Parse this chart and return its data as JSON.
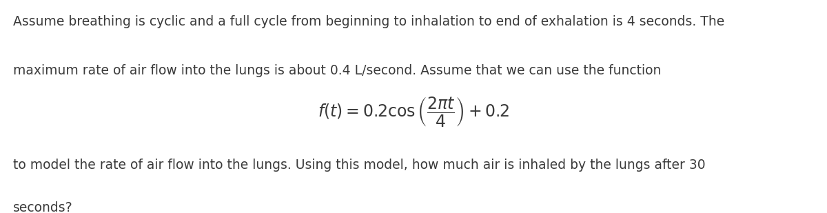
{
  "background_color": "#ffffff",
  "text_color": "#3a3a3a",
  "line1": "Assume breathing is cyclic and a full cycle from beginning to inhalation to end of exhalation is 4 seconds. The",
  "line2": "maximum rate of air flow into the lungs is about 0.4 L/second. Assume that we can use the function",
  "formula": "$f(t) = 0.2 \\cos\\left(\\dfrac{2\\pi t}{4}\\right) + 0.2$",
  "line3": "to model the rate of air flow into the lungs. Using this model, how much air is inhaled by the lungs after 30",
  "line4": "seconds?",
  "font_size_text": 13.5,
  "font_size_formula": 17,
  "fig_width": 12.0,
  "fig_height": 3.09,
  "dpi": 100
}
